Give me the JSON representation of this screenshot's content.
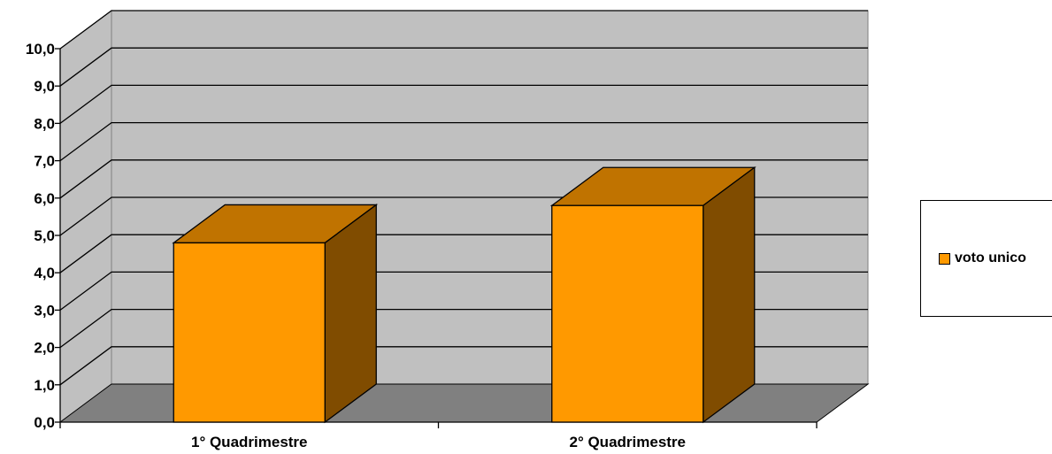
{
  "chart_data": {
    "type": "bar",
    "categories": [
      "1° Quadrimestre",
      "2° Quadrimestre"
    ],
    "series": [
      {
        "name": "voto unico",
        "values": [
          4.8,
          5.8
        ]
      }
    ],
    "ylim": [
      0,
      10
    ],
    "yticks": [
      "0,0",
      "1,0",
      "2,0",
      "3,0",
      "4,0",
      "5,0",
      "6,0",
      "7,0",
      "8,0",
      "9,0",
      "10,0"
    ],
    "grid": true,
    "legend": "right",
    "colors": {
      "bar_front": "#FF9900",
      "bar_top": "#C07300",
      "bar_side": "#804C00",
      "wall": "#C0C0C0",
      "floor": "#808080"
    }
  }
}
